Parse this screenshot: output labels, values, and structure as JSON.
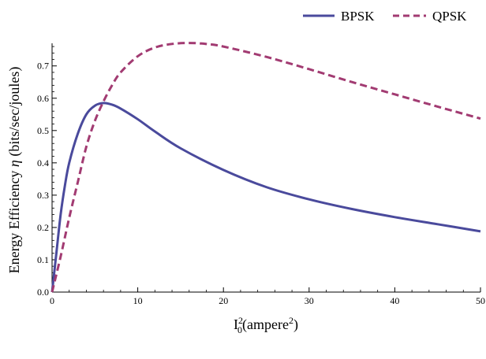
{
  "chart_data": {
    "type": "line",
    "title": "",
    "xlabel_base": "I",
    "xlabel_sup": "2",
    "xlabel_sub": "0",
    "xlabel_paren_open": "(ampere",
    "xlabel_paren_sup": "2",
    "xlabel_paren_close": ")",
    "ylabel_prefix": "Energy Efficiency ",
    "ylabel_symbol": "η",
    "ylabel_suffix": " (bits/sec/joules)",
    "xlim": [
      0,
      50
    ],
    "ylim": [
      0,
      0.77
    ],
    "x_ticks": [
      0,
      10,
      20,
      30,
      40,
      50
    ],
    "x_tick_labels": [
      "0",
      "10",
      "20",
      "30",
      "40",
      "50"
    ],
    "y_ticks": [
      0.0,
      0.1,
      0.2,
      0.3,
      0.4,
      0.5,
      0.6,
      0.7
    ],
    "y_tick_labels": [
      "0.0",
      "0.1",
      "0.2",
      "0.3",
      "0.4",
      "0.5",
      "0.6",
      "0.7"
    ],
    "grid": false,
    "legend_position": "top-right",
    "series": [
      {
        "name": "BPSK",
        "color": "#4a4a9c",
        "dash": "solid",
        "x": [
          0,
          0.5,
          1,
          1.5,
          2,
          3,
          4,
          5,
          6,
          7,
          8,
          10,
          12,
          15,
          20,
          25,
          30,
          35,
          40,
          45,
          50
        ],
        "y": [
          0,
          0.12,
          0.24,
          0.33,
          0.4,
          0.49,
          0.55,
          0.577,
          0.585,
          0.58,
          0.568,
          0.535,
          0.497,
          0.445,
          0.378,
          0.325,
          0.287,
          0.257,
          0.232,
          0.21,
          0.188
        ]
      },
      {
        "name": "QPSK",
        "color": "#a23b72",
        "dash": "dashed",
        "x": [
          0,
          1,
          2,
          3,
          4,
          5,
          6,
          7,
          8,
          10,
          12,
          14,
          16,
          18,
          20,
          25,
          30,
          35,
          40,
          45,
          50
        ],
        "y": [
          0,
          0.11,
          0.23,
          0.34,
          0.45,
          0.53,
          0.59,
          0.64,
          0.68,
          0.73,
          0.757,
          0.768,
          0.771,
          0.768,
          0.76,
          0.728,
          0.69,
          0.65,
          0.612,
          0.574,
          0.537
        ]
      }
    ]
  }
}
